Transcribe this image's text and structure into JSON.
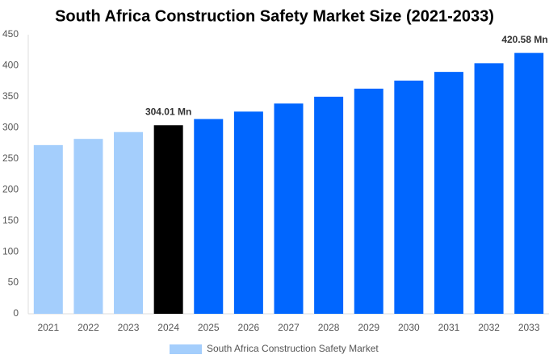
{
  "chart_data": {
    "type": "bar",
    "title": "South Africa Construction Safety Market Size (2021-2033)",
    "categories": [
      "2021",
      "2022",
      "2023",
      "2024",
      "2025",
      "2026",
      "2027",
      "2028",
      "2029",
      "2030",
      "2031",
      "2032",
      "2033"
    ],
    "series": [
      {
        "name": "South Africa Construction Safety Market",
        "color": "#a4cefc",
        "values": [
          272,
          282,
          293,
          304.01,
          314,
          326,
          339,
          350,
          363,
          376,
          390,
          404,
          420.58
        ],
        "value_labels": [
          null,
          null,
          null,
          "304.01 Mn",
          null,
          null,
          null,
          null,
          null,
          null,
          null,
          null,
          "420.58 Mn"
        ],
        "colors": [
          "#a4cefc",
          "#a4cefc",
          "#a4cefc",
          "#000000",
          "#0066ff",
          "#0066ff",
          "#0066ff",
          "#0066ff",
          "#0066ff",
          "#0066ff",
          "#0066ff",
          "#0066ff",
          "#0066ff"
        ]
      }
    ],
    "ylim": [
      0,
      450
    ],
    "yticks": [
      0,
      50,
      100,
      150,
      200,
      250,
      300,
      350,
      400,
      450
    ],
    "grid": false,
    "legend": "bottom"
  }
}
